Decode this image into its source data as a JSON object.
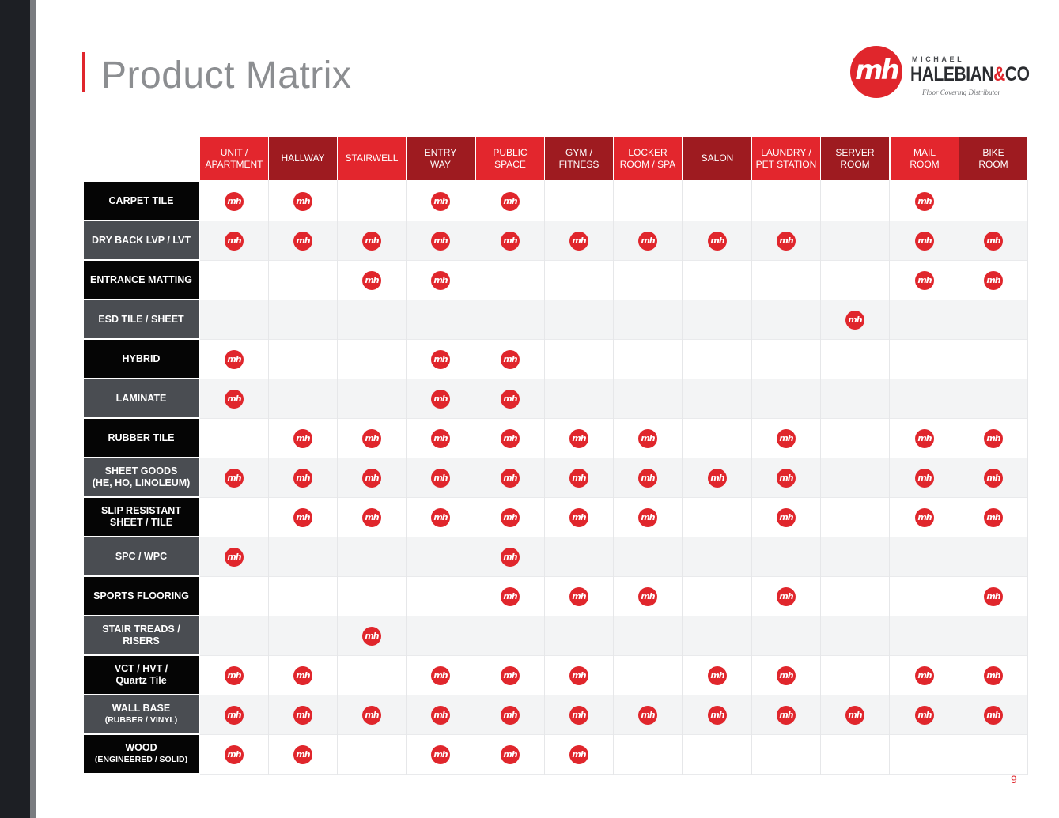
{
  "page": {
    "title": "Product Matrix",
    "page_number": "9"
  },
  "logo": {
    "mark_text": "mh",
    "top_text": "MICHAEL",
    "main_text": "HALEBIAN",
    "amp_text": "&",
    "co_text": "CO",
    "sub_text": "Floor Covering Distributor"
  },
  "colors": {
    "accent": "#e0262c",
    "header_bright": "#e3262d",
    "header_dark": "#9e1b20",
    "label_black": "#050505",
    "label_gray": "#4a4d52"
  },
  "columns": [
    {
      "label": "UNIT /\nAPARTMENT",
      "shade": "bright"
    },
    {
      "label": "HALLWAY",
      "shade": "dark"
    },
    {
      "label": "STAIRWELL",
      "shade": "bright"
    },
    {
      "label": "ENTRY\nWAY",
      "shade": "dark"
    },
    {
      "label": "PUBLIC\nSPACE",
      "shade": "bright"
    },
    {
      "label": "GYM /\nFITNESS",
      "shade": "dark"
    },
    {
      "label": "LOCKER\nROOM / SPA",
      "shade": "bright"
    },
    {
      "label": "SALON",
      "shade": "dark"
    },
    {
      "label": "LAUNDRY /\nPET STATION",
      "shade": "bright"
    },
    {
      "label": "SERVER\nROOM",
      "shade": "dark"
    },
    {
      "label": "MAIL\nROOM",
      "shade": "bright"
    },
    {
      "label": "BIKE\nROOM",
      "shade": "dark"
    }
  ],
  "mark_icon": "mh-logo-icon",
  "rows": [
    {
      "label": "CARPET TILE",
      "sub": "",
      "shade": "black",
      "marks": [
        1,
        1,
        0,
        1,
        1,
        0,
        0,
        0,
        0,
        0,
        1,
        0
      ]
    },
    {
      "label": "DRY BACK LVP / LVT",
      "sub": "",
      "shade": "gray",
      "marks": [
        1,
        1,
        1,
        1,
        1,
        1,
        1,
        1,
        1,
        0,
        1,
        1
      ]
    },
    {
      "label": "ENTRANCE MATTING",
      "sub": "",
      "shade": "black",
      "marks": [
        0,
        0,
        1,
        1,
        0,
        0,
        0,
        0,
        0,
        0,
        1,
        1
      ]
    },
    {
      "label": "ESD TILE / SHEET",
      "sub": "",
      "shade": "gray",
      "marks": [
        0,
        0,
        0,
        0,
        0,
        0,
        0,
        0,
        0,
        1,
        0,
        0
      ]
    },
    {
      "label": "HYBRID",
      "sub": "",
      "shade": "black",
      "marks": [
        1,
        0,
        0,
        1,
        1,
        0,
        0,
        0,
        0,
        0,
        0,
        0
      ]
    },
    {
      "label": "LAMINATE",
      "sub": "",
      "shade": "gray",
      "marks": [
        1,
        0,
        0,
        1,
        1,
        0,
        0,
        0,
        0,
        0,
        0,
        0
      ]
    },
    {
      "label": "RUBBER TILE",
      "sub": "",
      "shade": "black",
      "marks": [
        0,
        1,
        1,
        1,
        1,
        1,
        1,
        0,
        1,
        0,
        1,
        1
      ]
    },
    {
      "label": "SHEET GOODS",
      "sub": "(HE, HO, LINOLEUM)",
      "sub_small": false,
      "shade": "gray",
      "marks": [
        1,
        1,
        1,
        1,
        1,
        1,
        1,
        1,
        1,
        0,
        1,
        1
      ]
    },
    {
      "label": "SLIP RESISTANT",
      "sub": "SHEET / TILE",
      "sub_small": false,
      "shade": "black",
      "marks": [
        0,
        1,
        1,
        1,
        1,
        1,
        1,
        0,
        1,
        0,
        1,
        1
      ]
    },
    {
      "label": "SPC / WPC",
      "sub": "",
      "shade": "gray",
      "marks": [
        1,
        0,
        0,
        0,
        1,
        0,
        0,
        0,
        0,
        0,
        0,
        0
      ]
    },
    {
      "label": "SPORTS FLOORING",
      "sub": "",
      "shade": "black",
      "marks": [
        0,
        0,
        0,
        0,
        1,
        1,
        1,
        0,
        1,
        0,
        0,
        1
      ]
    },
    {
      "label": "STAIR TREADS /",
      "sub": "RISERS",
      "sub_small": false,
      "shade": "gray",
      "marks": [
        0,
        0,
        1,
        0,
        0,
        0,
        0,
        0,
        0,
        0,
        0,
        0
      ]
    },
    {
      "label": "VCT / HVT /",
      "sub": "Quartz Tile",
      "sub_small": false,
      "sub_mixed": true,
      "shade": "black",
      "marks": [
        1,
        1,
        0,
        1,
        1,
        1,
        0,
        1,
        1,
        0,
        1,
        1
      ]
    },
    {
      "label": "WALL BASE",
      "sub": "(RUBBER / VINYL)",
      "sub_small": true,
      "shade": "gray",
      "marks": [
        1,
        1,
        1,
        1,
        1,
        1,
        1,
        1,
        1,
        1,
        1,
        1
      ]
    },
    {
      "label": "WOOD",
      "sub": "(ENGINEERED / SOLID)",
      "sub_small": true,
      "shade": "black",
      "marks": [
        1,
        1,
        0,
        1,
        1,
        1,
        0,
        0,
        0,
        0,
        0,
        0
      ]
    }
  ]
}
